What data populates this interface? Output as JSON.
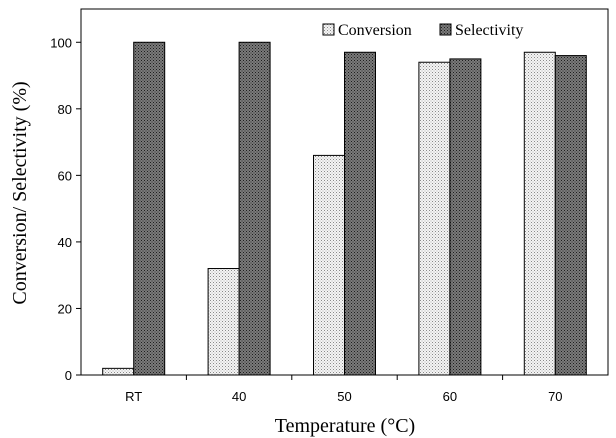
{
  "chart_data": {
    "type": "bar",
    "categories": [
      "RT",
      "40",
      "50",
      "60",
      "70"
    ],
    "series": [
      {
        "name": "Conversion",
        "values": [
          2,
          32,
          66,
          94,
          97
        ],
        "color": "#e2e2e2",
        "pattern": "light-dots"
      },
      {
        "name": "Selectivity",
        "values": [
          100,
          100,
          97,
          95,
          96
        ],
        "color": "#5a5a5a",
        "pattern": "dark-dots"
      }
    ],
    "xlabel": "Temperature (°C)",
    "ylabel": "Conversion/ Selectivity (%)",
    "ylim": [
      0,
      110
    ],
    "yticks": [
      0,
      20,
      40,
      60,
      80,
      100
    ],
    "grid": false,
    "legend": "top-right"
  }
}
